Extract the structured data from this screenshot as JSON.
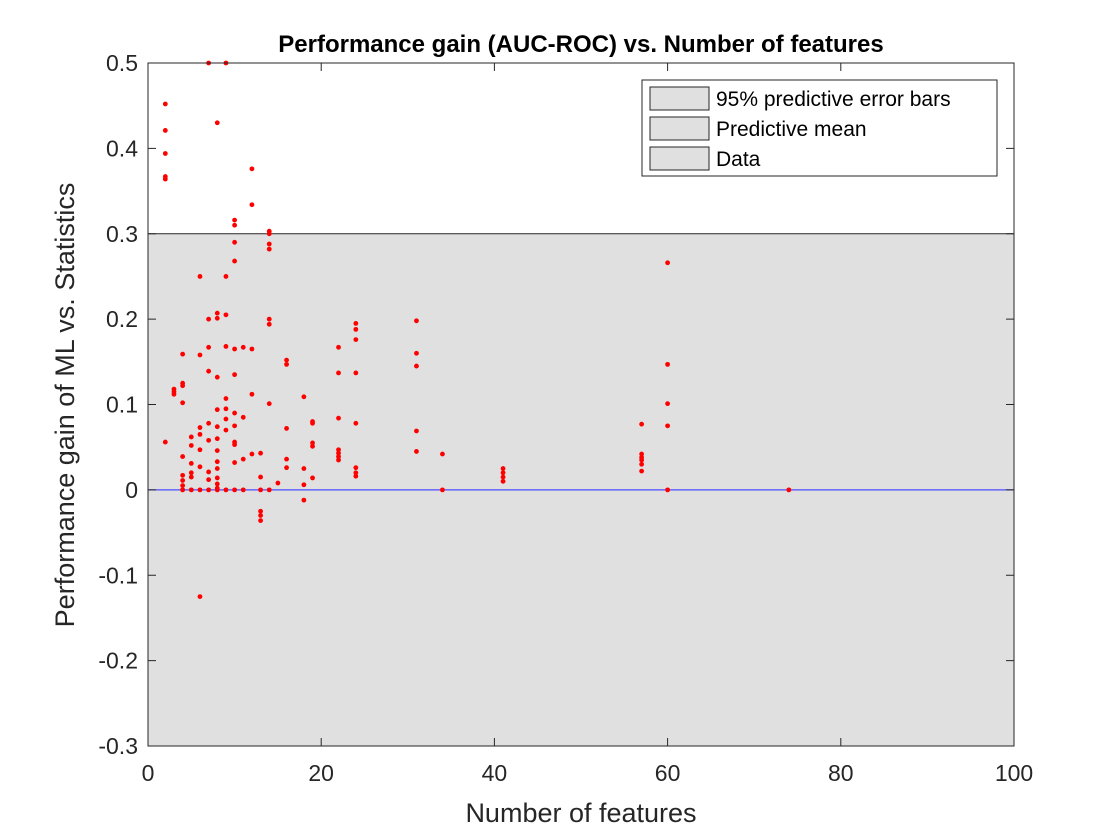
{
  "chart_data": {
    "type": "scatter",
    "title": "Performance gain (AUC-ROC) vs. Number of features",
    "xlabel": "Number of features",
    "ylabel": "Performance gain of ML vs. Statistics",
    "xlim": [
      0,
      100
    ],
    "ylim": [
      -0.3,
      0.5
    ],
    "xticks": [
      "0",
      "20",
      "40",
      "60",
      "80",
      "100"
    ],
    "yticks": [
      "-0.3",
      "-0.2",
      "-0.1",
      "0",
      "0.1",
      "0.2",
      "0.3",
      "0.4",
      "0.5"
    ],
    "grid": false,
    "legend_position": "top-right",
    "legend": [
      "95% predictive error bars",
      "Predictive mean",
      "Data"
    ],
    "error_band": {
      "lower": -0.3,
      "upper": 0.3,
      "color": "#e0e0e0"
    },
    "predictive_mean": {
      "value": 0,
      "color": "#4d4dff"
    },
    "data_color": "#ff0000",
    "points": [
      [
        2,
        0.452
      ],
      [
        2,
        0.421
      ],
      [
        2,
        0.394
      ],
      [
        2,
        0.367
      ],
      [
        2,
        0.364
      ],
      [
        2,
        0.056
      ],
      [
        3,
        0.118
      ],
      [
        3,
        0.115
      ],
      [
        3,
        0.112
      ],
      [
        4,
        0.159
      ],
      [
        4,
        0.125
      ],
      [
        4,
        0.122
      ],
      [
        4,
        0.102
      ],
      [
        4,
        0.039
      ],
      [
        4,
        0.017
      ],
      [
        4,
        0.011
      ],
      [
        4,
        0.005
      ],
      [
        4,
        0.0
      ],
      [
        5,
        0.062
      ],
      [
        5,
        0.052
      ],
      [
        5,
        0.031
      ],
      [
        5,
        0.02
      ],
      [
        5,
        0.015
      ],
      [
        5,
        0.0
      ],
      [
        6,
        0.25
      ],
      [
        6,
        0.158
      ],
      [
        6,
        0.073
      ],
      [
        6,
        0.065
      ],
      [
        6,
        0.047
      ],
      [
        6,
        0.027
      ],
      [
        6,
        0.0
      ],
      [
        6,
        -0.125
      ],
      [
        7,
        0.5
      ],
      [
        7,
        0.2
      ],
      [
        7,
        0.167
      ],
      [
        7,
        0.139
      ],
      [
        7,
        0.078
      ],
      [
        7,
        0.058
      ],
      [
        7,
        0.021
      ],
      [
        7,
        0.012
      ],
      [
        7,
        0.0
      ],
      [
        8,
        0.43
      ],
      [
        8,
        0.207
      ],
      [
        8,
        0.201
      ],
      [
        8,
        0.132
      ],
      [
        8,
        0.094
      ],
      [
        8,
        0.074
      ],
      [
        8,
        0.06
      ],
      [
        8,
        0.046
      ],
      [
        8,
        0.033
      ],
      [
        8,
        0.025
      ],
      [
        8,
        0.014
      ],
      [
        8,
        0.007
      ],
      [
        8,
        0.002
      ],
      [
        8,
        0.0
      ],
      [
        9,
        0.5
      ],
      [
        9,
        0.25
      ],
      [
        9,
        0.205
      ],
      [
        9,
        0.168
      ],
      [
        9,
        0.107
      ],
      [
        9,
        0.095
      ],
      [
        9,
        0.083
      ],
      [
        9,
        0.07
      ],
      [
        9,
        0.0
      ],
      [
        10,
        0.316
      ],
      [
        10,
        0.31
      ],
      [
        10,
        0.29
      ],
      [
        10,
        0.268
      ],
      [
        10,
        0.165
      ],
      [
        10,
        0.135
      ],
      [
        10,
        0.09
      ],
      [
        10,
        0.075
      ],
      [
        10,
        0.056
      ],
      [
        10,
        0.053
      ],
      [
        10,
        0.032
      ],
      [
        10,
        0.0
      ],
      [
        11,
        0.167
      ],
      [
        11,
        0.085
      ],
      [
        11,
        0.036
      ],
      [
        11,
        0.0
      ],
      [
        12,
        0.376
      ],
      [
        12,
        0.334
      ],
      [
        12,
        0.165
      ],
      [
        12,
        0.112
      ],
      [
        12,
        0.042
      ],
      [
        13,
        0.043
      ],
      [
        13,
        0.015
      ],
      [
        13,
        0.0
      ],
      [
        13,
        -0.025
      ],
      [
        13,
        -0.03
      ],
      [
        13,
        -0.036
      ],
      [
        14,
        0.303
      ],
      [
        14,
        0.3
      ],
      [
        14,
        0.288
      ],
      [
        14,
        0.282
      ],
      [
        14,
        0.2
      ],
      [
        14,
        0.194
      ],
      [
        14,
        0.101
      ],
      [
        14,
        0.0
      ],
      [
        15,
        0.008
      ],
      [
        16,
        0.152
      ],
      [
        16,
        0.147
      ],
      [
        16,
        0.072
      ],
      [
        16,
        0.036
      ],
      [
        16,
        0.026
      ],
      [
        18,
        0.109
      ],
      [
        18,
        0.025
      ],
      [
        18,
        0.006
      ],
      [
        18,
        -0.012
      ],
      [
        19,
        0.08
      ],
      [
        19,
        0.078
      ],
      [
        19,
        0.055
      ],
      [
        19,
        0.051
      ],
      [
        19,
        0.014
      ],
      [
        22,
        0.167
      ],
      [
        22,
        0.137
      ],
      [
        22,
        0.084
      ],
      [
        22,
        0.047
      ],
      [
        22,
        0.043
      ],
      [
        22,
        0.039
      ],
      [
        22,
        0.035
      ],
      [
        24,
        0.195
      ],
      [
        24,
        0.188
      ],
      [
        24,
        0.176
      ],
      [
        24,
        0.137
      ],
      [
        24,
        0.078
      ],
      [
        24,
        0.026
      ],
      [
        24,
        0.02
      ],
      [
        24,
        0.016
      ],
      [
        31,
        0.198
      ],
      [
        31,
        0.16
      ],
      [
        31,
        0.145
      ],
      [
        31,
        0.069
      ],
      [
        31,
        0.045
      ],
      [
        34,
        0.042
      ],
      [
        34,
        0.0
      ],
      [
        41,
        0.025
      ],
      [
        41,
        0.02
      ],
      [
        41,
        0.015
      ],
      [
        41,
        0.01
      ],
      [
        57,
        0.077
      ],
      [
        57,
        0.042
      ],
      [
        57,
        0.038
      ],
      [
        57,
        0.035
      ],
      [
        57,
        0.03
      ],
      [
        57,
        0.022
      ],
      [
        60,
        0.266
      ],
      [
        60,
        0.147
      ],
      [
        60,
        0.101
      ],
      [
        60,
        0.075
      ],
      [
        60,
        0.0
      ],
      [
        74,
        0.0
      ]
    ]
  }
}
